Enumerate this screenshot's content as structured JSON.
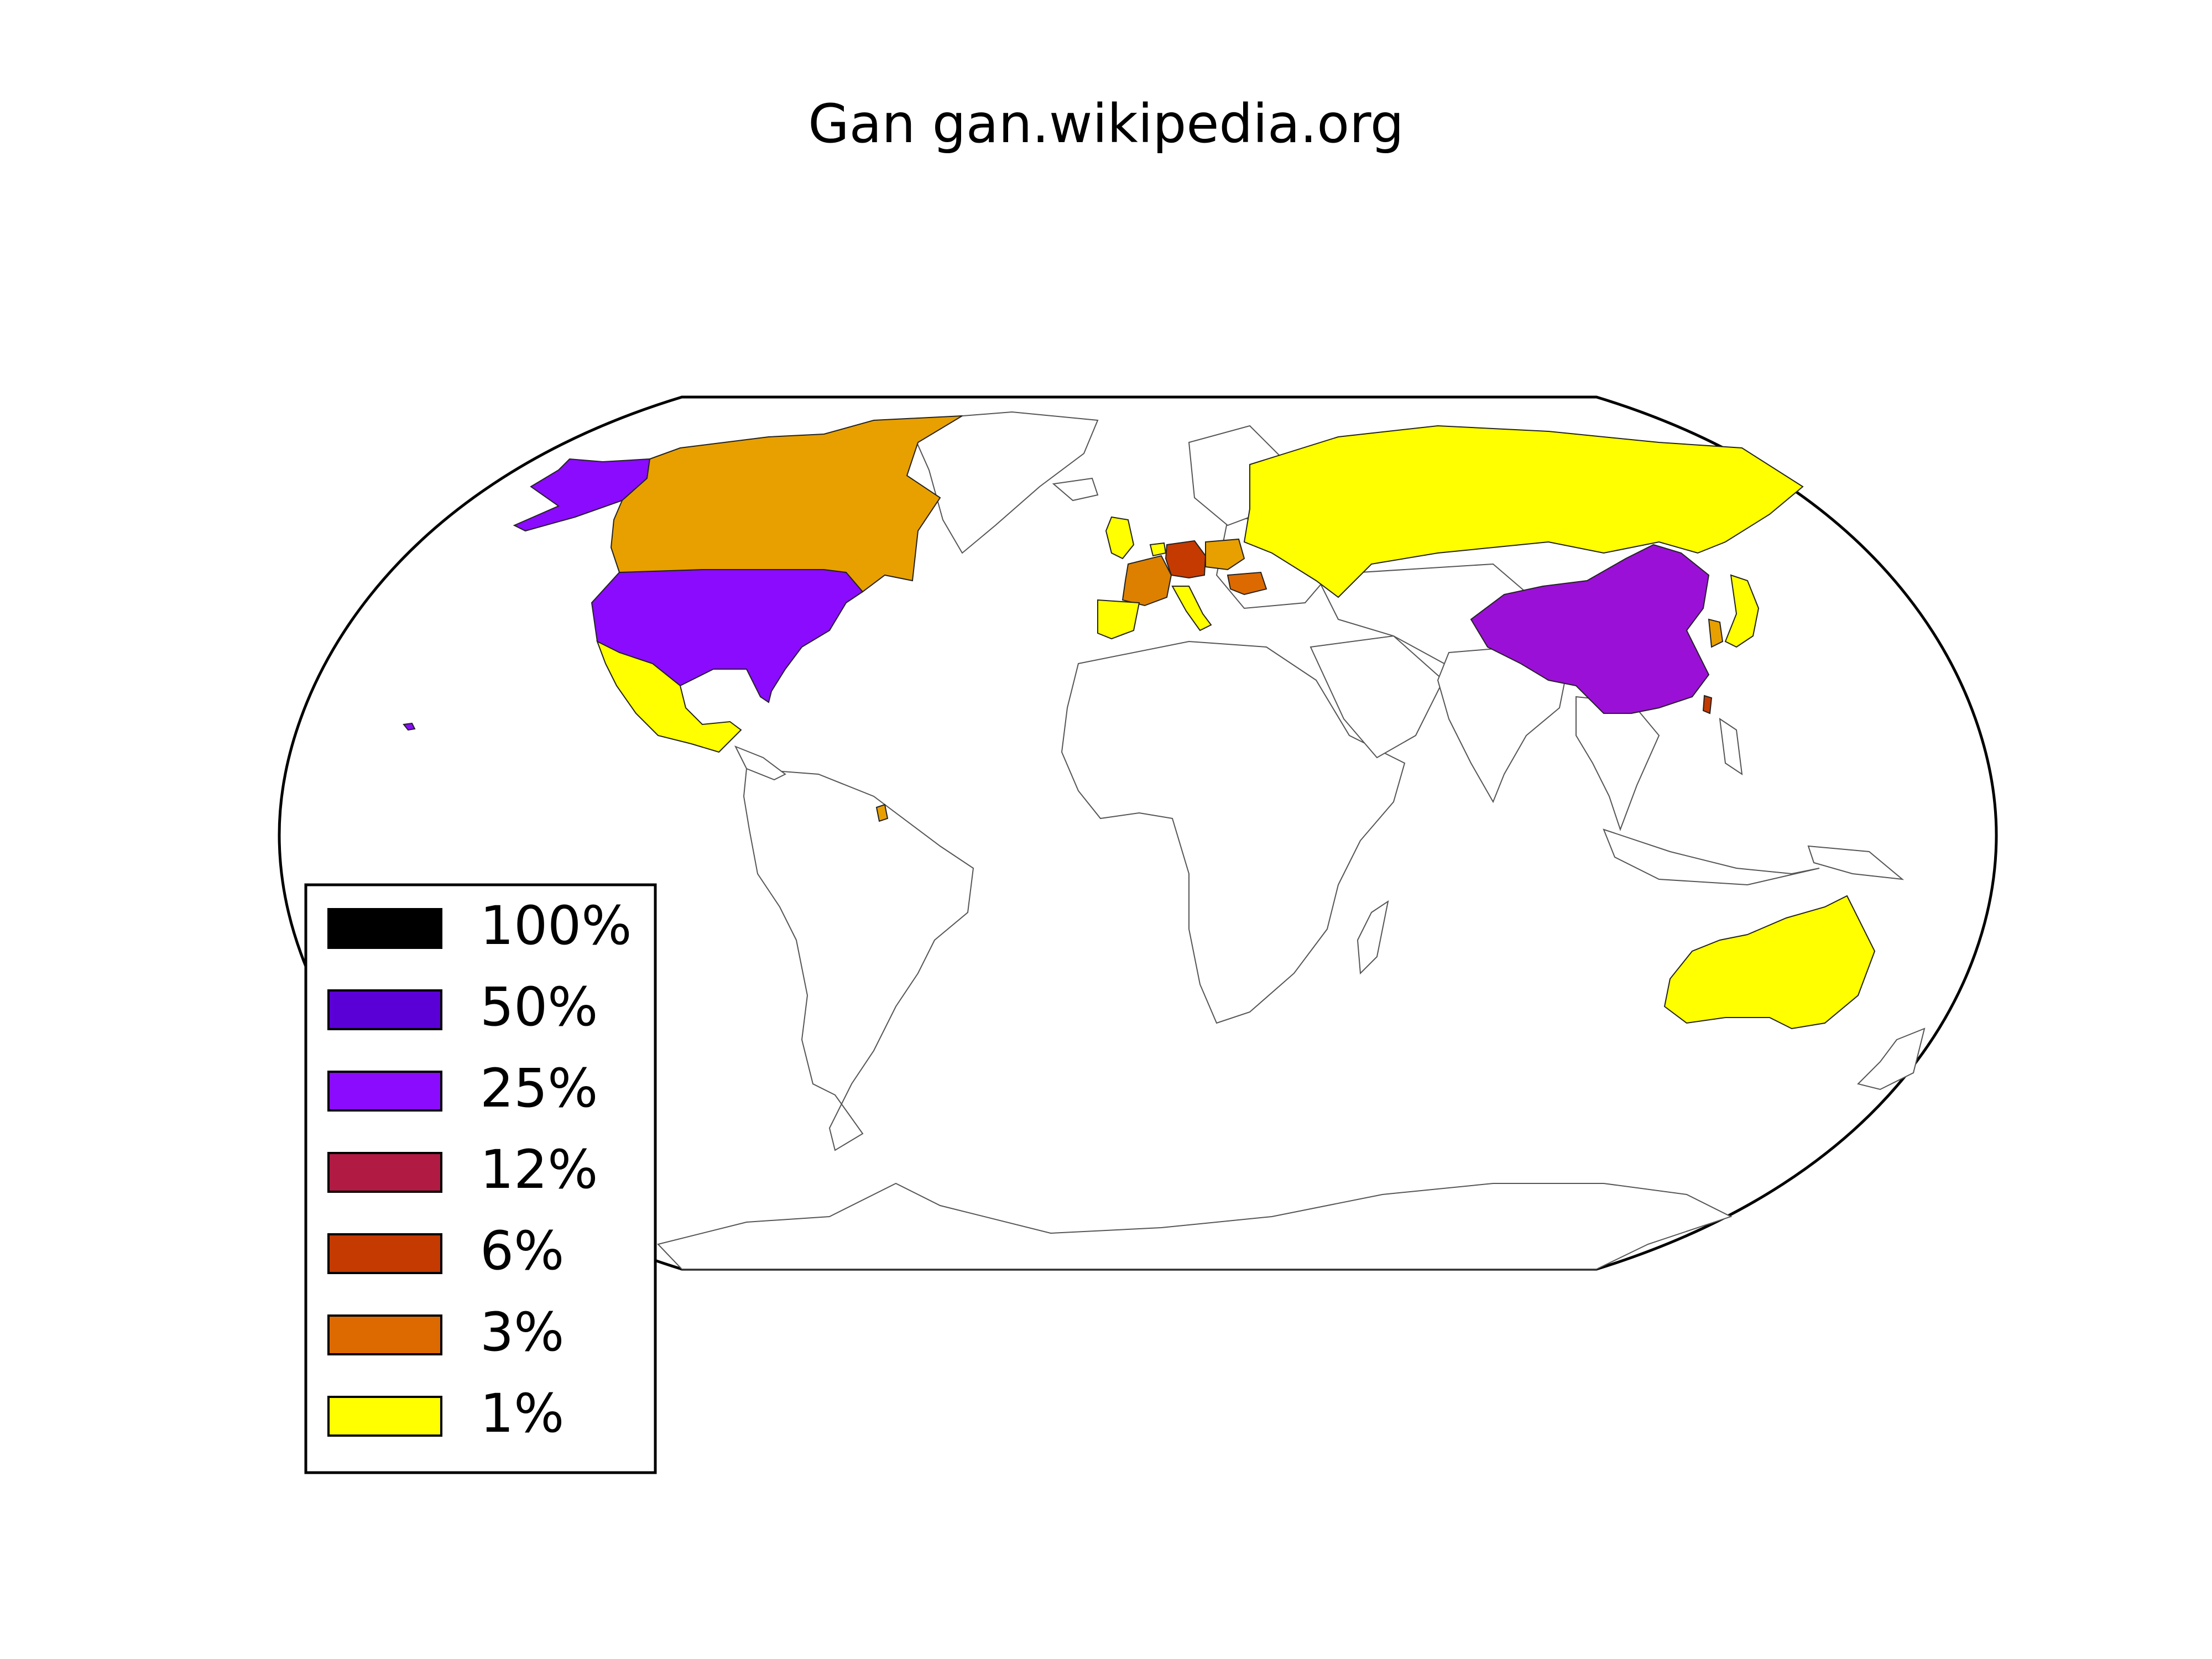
{
  "title": "Gan gan.wikipedia.org",
  "legend": {
    "items": [
      {
        "label": "100%",
        "color": "#000000"
      },
      {
        "label": "50%",
        "color": "#5a00d6"
      },
      {
        "label": "25%",
        "color": "#8b0bff"
      },
      {
        "label": "12%",
        "color": "#b01a43"
      },
      {
        "label": "6%",
        "color": "#c43a00"
      },
      {
        "label": "3%",
        "color": "#dd6a00"
      },
      {
        "label": "1%",
        "color": "#ffff00"
      }
    ]
  },
  "regions": [
    {
      "name": "united-states",
      "color": "#8b0bff"
    },
    {
      "name": "alaska",
      "color": "#8b0bff"
    },
    {
      "name": "hawaii",
      "color": "#8b0bff"
    },
    {
      "name": "canada",
      "color": "#e8a000"
    },
    {
      "name": "mexico",
      "color": "#ffff00"
    },
    {
      "name": "china",
      "color": "#9b10d6"
    },
    {
      "name": "taiwan",
      "color": "#c43a00"
    },
    {
      "name": "germany",
      "color": "#c43a00"
    },
    {
      "name": "france",
      "color": "#dd8000"
    },
    {
      "name": "poland",
      "color": "#e8a000"
    },
    {
      "name": "romania",
      "color": "#dd6a00"
    },
    {
      "name": "united-kingdom",
      "color": "#ffff00"
    },
    {
      "name": "spain",
      "color": "#ffff00"
    },
    {
      "name": "italy",
      "color": "#ffff00"
    },
    {
      "name": "netherlands",
      "color": "#ffff00"
    },
    {
      "name": "russia",
      "color": "#ffff00"
    },
    {
      "name": "japan",
      "color": "#ffff00"
    },
    {
      "name": "south-korea",
      "color": "#e8a000"
    },
    {
      "name": "australia",
      "color": "#ffff00"
    },
    {
      "name": "french-guiana",
      "color": "#e8a000"
    }
  ]
}
